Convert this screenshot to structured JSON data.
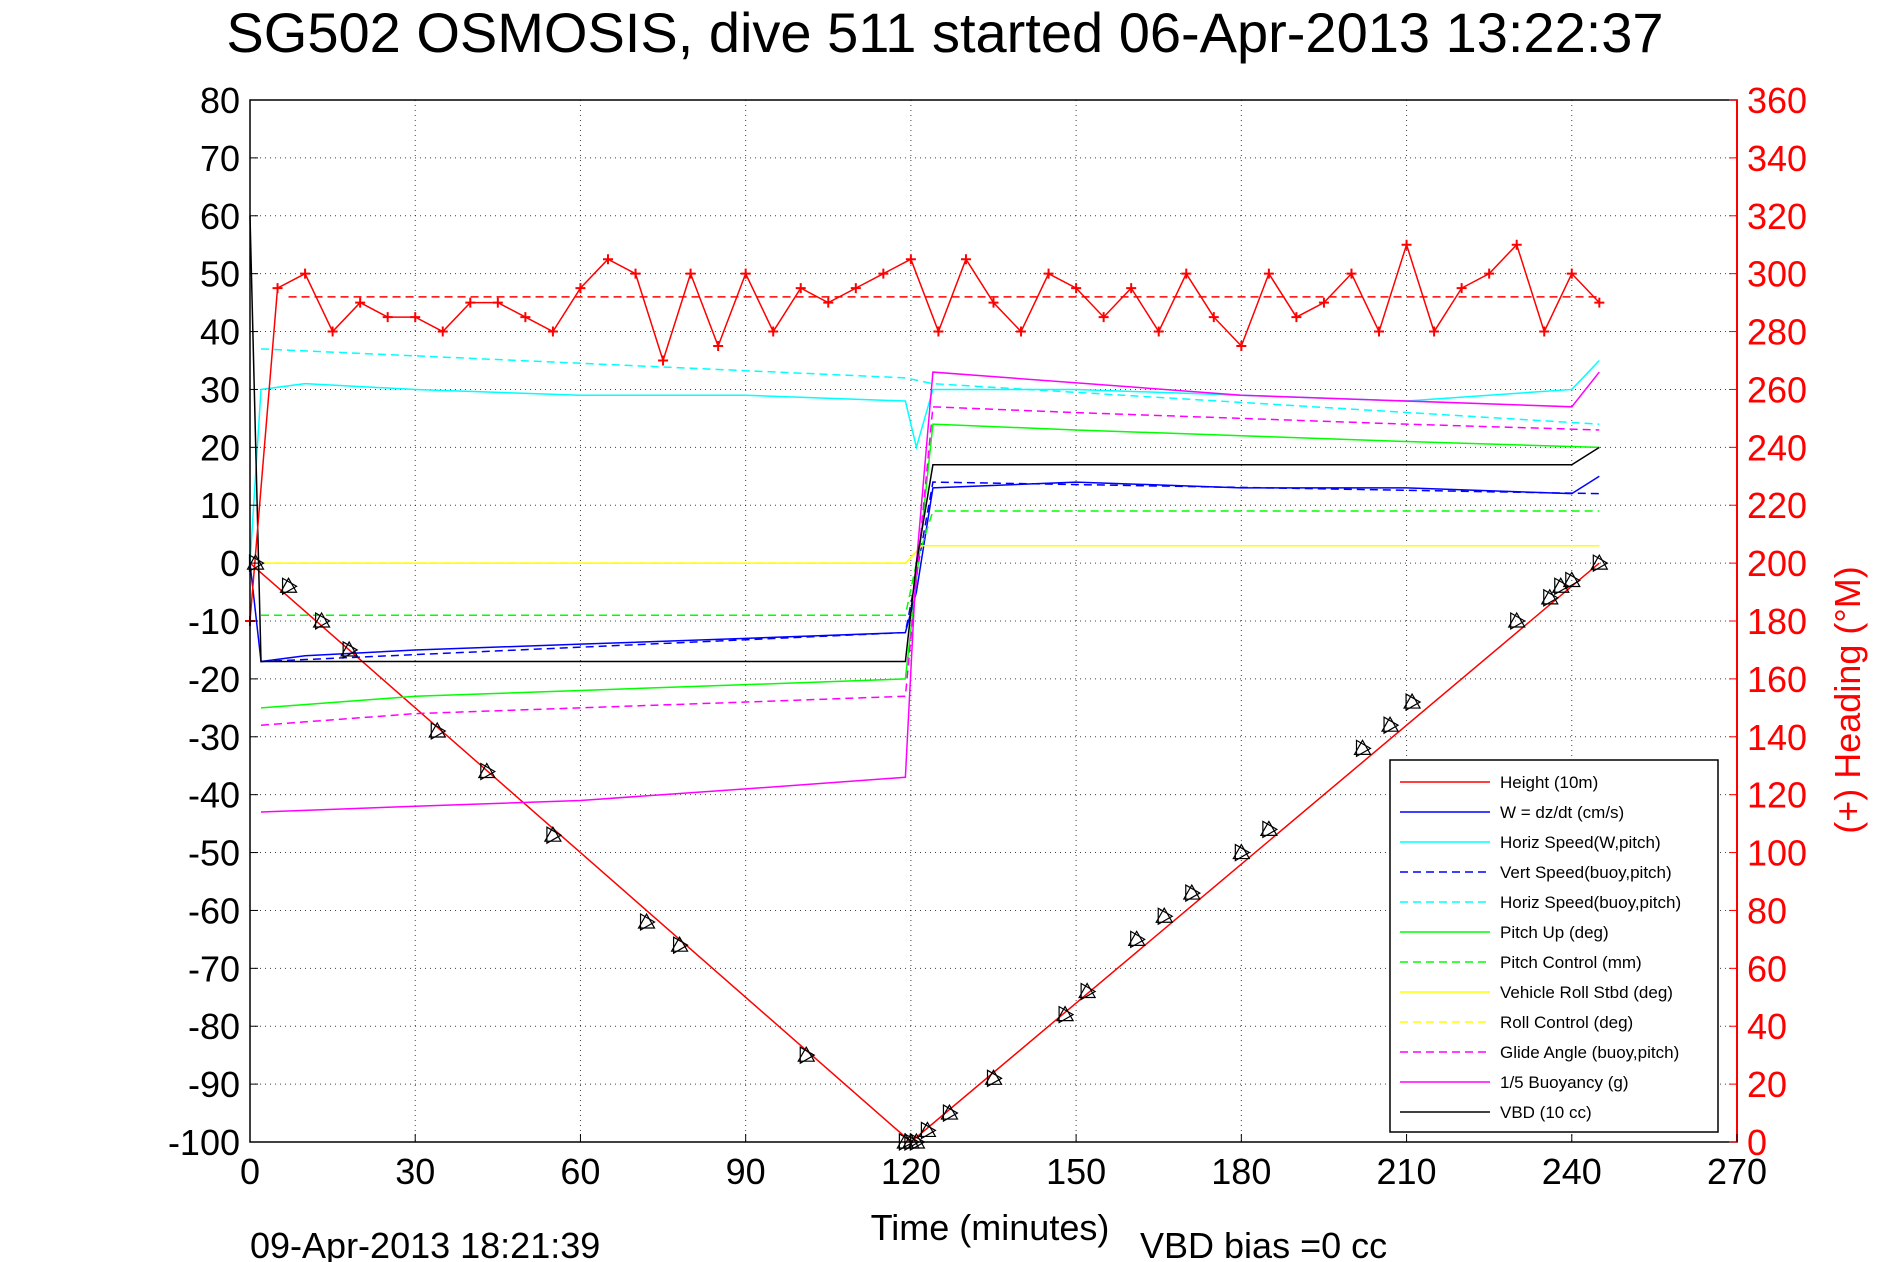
{
  "title": "SG502 OSMOSIS, dive 511 started 06-Apr-2013 13:22:37",
  "footer": {
    "timestamp": "09-Apr-2013 18:21:39",
    "vbd_bias": "VBD bias =0 cc"
  },
  "colors": {
    "red": "#ff0000",
    "blue": "#0000ff",
    "cyan": "#00ffff",
    "green": "#00ff00",
    "yellow": "#ffff00",
    "magenta": "#ff00ff",
    "black": "#000000"
  },
  "chart_data": {
    "type": "line",
    "xlabel": "Time (minutes)",
    "ylabel_right": "(+) Heading (°M)",
    "xlim": [
      0,
      270
    ],
    "ylim_left": [
      -100,
      80
    ],
    "ylim_right": [
      0,
      360
    ],
    "grid": true,
    "legend_position": "bottom-right",
    "x_ticks": [
      "0",
      "30",
      "60",
      "90",
      "120",
      "150",
      "180",
      "210",
      "240",
      "270"
    ],
    "y_left_ticks": [
      "80",
      "70",
      "60",
      "50",
      "40",
      "30",
      "20",
      "10",
      "0",
      "-10",
      "-20",
      "-30",
      "-40",
      "-50",
      "-60",
      "-70",
      "-80",
      "-90",
      "-100"
    ],
    "y_right_ticks": [
      "360",
      "340",
      "320",
      "300",
      "280",
      "260",
      "240",
      "220",
      "200",
      "180",
      "160",
      "140",
      "120",
      "100",
      "80",
      "60",
      "40",
      "20",
      "0"
    ],
    "legend": [
      {
        "label": "Height (10m)",
        "color": "#ff0000",
        "style": "solid"
      },
      {
        "label": "W = dz/dt (cm/s)",
        "color": "#0000ff",
        "style": "solid"
      },
      {
        "label": "Horiz Speed(W,pitch)",
        "color": "#00ffff",
        "style": "solid"
      },
      {
        "label": "Vert Speed(buoy,pitch)",
        "color": "#0000ff",
        "style": "dashed"
      },
      {
        "label": "Horiz Speed(buoy,pitch)",
        "color": "#00ffff",
        "style": "dashed"
      },
      {
        "label": "Pitch Up (deg)",
        "color": "#00ff00",
        "style": "solid"
      },
      {
        "label": "Pitch Control (mm)",
        "color": "#00ff00",
        "style": "dashed"
      },
      {
        "label": "Vehicle Roll Stbd (deg)",
        "color": "#ffff00",
        "style": "solid"
      },
      {
        "label": "Roll Control (deg)",
        "color": "#ffff00",
        "style": "dashed"
      },
      {
        "label": "Glide Angle (buoy,pitch)",
        "color": "#ff00ff",
        "style": "dashed"
      },
      {
        "label": "1/5 Buoyancy (g)",
        "color": "#ff00ff",
        "style": "solid"
      },
      {
        "label": "VBD (10 cc)",
        "color": "#000000",
        "style": "solid"
      }
    ],
    "series": [
      {
        "name": "Height (10m)",
        "x": [
          0,
          120,
          245
        ],
        "y": [
          0,
          -100,
          0
        ]
      },
      {
        "name": "W = dz/dt (cm/s)",
        "x": [
          0,
          2,
          10,
          30,
          60,
          90,
          119,
          121,
          124,
          150,
          180,
          210,
          240,
          245
        ],
        "y": [
          0,
          -17,
          -16,
          -15,
          -14,
          -13,
          -12,
          -5,
          13,
          14,
          13,
          13,
          12,
          15
        ]
      },
      {
        "name": "Horiz Speed(W,pitch)",
        "x": [
          0,
          2,
          10,
          30,
          60,
          90,
          119,
          121,
          124,
          150,
          180,
          210,
          240,
          245
        ],
        "y": [
          0,
          30,
          31,
          30,
          29,
          29,
          28,
          20,
          30,
          30,
          29,
          28,
          30,
          35
        ]
      },
      {
        "name": "Vert Speed(buoy,pitch)",
        "x": [
          2,
          119,
          121,
          124,
          245
        ],
        "y": [
          -17,
          -12,
          -2,
          14,
          12
        ]
      },
      {
        "name": "Horiz Speed(buoy,pitch)",
        "x": [
          2,
          119,
          124,
          245
        ],
        "y": [
          37,
          32,
          31,
          24
        ]
      },
      {
        "name": "Pitch Up (deg)",
        "x": [
          2,
          30,
          60,
          90,
          119,
          121,
          124,
          150,
          180,
          210,
          245
        ],
        "y": [
          -25,
          -23,
          -22,
          -21,
          -20,
          -3,
          24,
          23,
          22,
          21,
          20
        ]
      },
      {
        "name": "Pitch Control (mm)",
        "x": [
          2,
          119,
          121,
          124,
          245
        ],
        "y": [
          -9,
          -9,
          0,
          9,
          9
        ]
      },
      {
        "name": "Vehicle Roll Stbd (deg)",
        "x": [
          2,
          119,
          122,
          245
        ],
        "y": [
          0,
          0,
          3,
          3
        ]
      },
      {
        "name": "Roll Control (deg)",
        "x": [
          2,
          119,
          122,
          245
        ],
        "y": [
          0,
          0,
          3,
          3
        ]
      },
      {
        "name": "Glide Angle (buoy,pitch)",
        "x": [
          2,
          30,
          60,
          90,
          119,
          121,
          124,
          150,
          180,
          210,
          245
        ],
        "y": [
          -28,
          -26,
          -25,
          -24,
          -23,
          -3,
          27,
          26,
          25,
          24,
          23
        ]
      },
      {
        "name": "1/5 Buoyancy (g)",
        "x": [
          2,
          30,
          60,
          90,
          119,
          121,
          124,
          180,
          240,
          245
        ],
        "y": [
          -43,
          -42,
          -41,
          -39,
          -37,
          0,
          33,
          29,
          27,
          33
        ]
      },
      {
        "name": "VBD (10 cc)",
        "x": [
          0,
          2,
          119,
          121,
          124,
          180,
          240,
          245
        ],
        "y": [
          60,
          -17,
          -17,
          0,
          17,
          17,
          17,
          20
        ]
      },
      {
        "name": "Heading",
        "axis": "right",
        "x": [
          0,
          5,
          10,
          15,
          20,
          25,
          30,
          35,
          40,
          45,
          50,
          55,
          60,
          65,
          70,
          75,
          80,
          85,
          90,
          95,
          100,
          105,
          110,
          115,
          120,
          125,
          130,
          135,
          140,
          145,
          150,
          155,
          160,
          165,
          170,
          175,
          180,
          185,
          190,
          195,
          200,
          205,
          210,
          215,
          220,
          225,
          230,
          235,
          240,
          245
        ],
        "y": [
          180,
          295,
          300,
          280,
          290,
          285,
          285,
          280,
          290,
          290,
          285,
          280,
          295,
          305,
          300,
          270,
          300,
          275,
          300,
          280,
          295,
          290,
          295,
          300,
          305,
          280,
          305,
          290,
          280,
          300,
          295,
          285,
          295,
          280,
          300,
          285,
          275,
          300,
          285,
          290,
          300,
          280,
          310,
          280,
          295,
          300,
          310,
          280,
          300,
          290
        ]
      },
      {
        "name": "Heading reference",
        "axis": "right",
        "x": [
          7,
          245
        ],
        "y": [
          292,
          292
        ]
      }
    ],
    "markers": {
      "x": [
        1,
        7,
        13,
        18,
        34,
        43,
        55,
        72,
        78,
        101,
        119,
        120,
        121,
        123,
        127,
        135,
        148,
        152,
        161,
        166,
        171,
        180,
        185,
        202,
        207,
        211,
        230,
        236,
        238,
        240,
        245
      ],
      "y": [
        0,
        -4,
        -10,
        -15,
        -29,
        -36,
        -47,
        -62,
        -66,
        -85,
        -100,
        -100,
        -100,
        -98,
        -95,
        -89,
        -78,
        -74,
        -65,
        -61,
        -57,
        -50,
        -46,
        -32,
        -28,
        -24,
        -10,
        -6,
        -4,
        -3,
        0
      ]
    }
  }
}
